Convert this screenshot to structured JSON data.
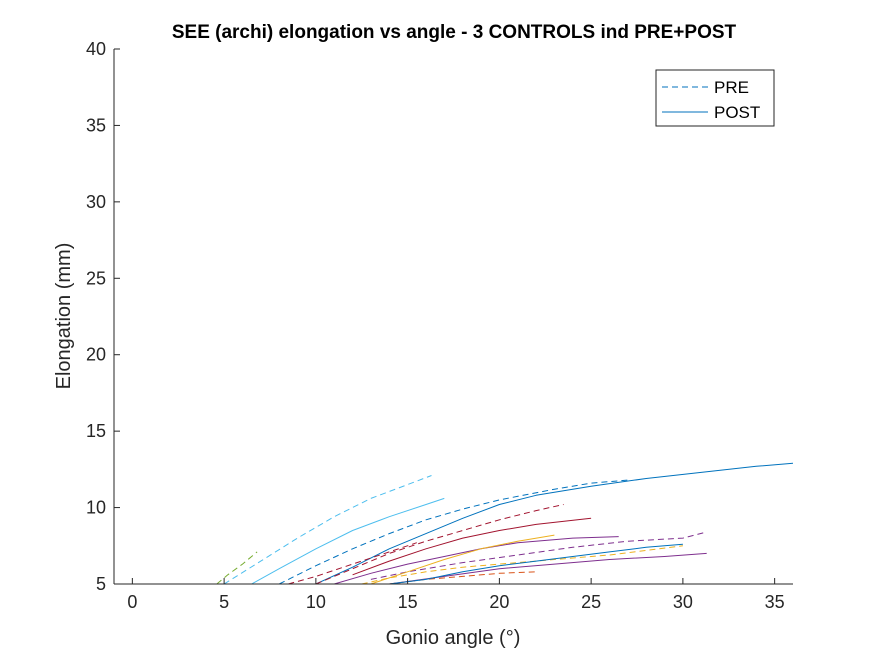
{
  "chart_data": {
    "type": "line",
    "title": "SEE (archi) elongation vs angle - 3 CONTROLS ind PRE+POST",
    "xlabel": "Gonio angle (°)",
    "ylabel": "Elongation (mm)",
    "xlim": [
      -1,
      36
    ],
    "ylim": [
      5,
      40
    ],
    "xticks": [
      0,
      5,
      10,
      15,
      20,
      25,
      30,
      35
    ],
    "yticks": [
      5,
      10,
      15,
      20,
      25,
      30,
      35,
      40
    ],
    "grid": false,
    "legend": {
      "placement": "top-right",
      "entries": [
        {
          "label": "PRE",
          "style": "dashed",
          "color": "#0072BD"
        },
        {
          "label": "POST",
          "style": "solid",
          "color": "#0072BD"
        }
      ]
    },
    "series": [
      {
        "style": "dashed",
        "color": "#4DBEEE",
        "points": [
          [
            5,
            5
          ],
          [
            7,
            6.5
          ],
          [
            9,
            8
          ],
          [
            11,
            9.4
          ],
          [
            13,
            10.6
          ],
          [
            15,
            11.5
          ],
          [
            16.3,
            12.1
          ]
        ]
      },
      {
        "style": "solid",
        "color": "#4DBEEE",
        "points": [
          [
            6.5,
            5
          ],
          [
            8,
            6
          ],
          [
            10,
            7.3
          ],
          [
            12,
            8.5
          ],
          [
            14,
            9.4
          ],
          [
            16,
            10.2
          ],
          [
            17,
            10.6
          ]
        ]
      },
      {
        "style": "dashed",
        "color": "#77AC30",
        "points": [
          [
            4.6,
            5
          ],
          [
            5.2,
            5.6
          ],
          [
            6,
            6.3
          ],
          [
            6.8,
            7.1
          ]
        ]
      },
      {
        "style": "dashed",
        "color": "#0072BD",
        "points": [
          [
            8,
            5
          ],
          [
            10,
            6.2
          ],
          [
            12,
            7.3
          ],
          [
            14,
            8.3
          ],
          [
            16,
            9.2
          ],
          [
            18,
            9.9
          ],
          [
            20,
            10.5
          ],
          [
            23,
            11.2
          ],
          [
            25,
            11.6
          ],
          [
            27,
            11.8
          ]
        ]
      },
      {
        "style": "solid",
        "color": "#0072BD",
        "points": [
          [
            10,
            5
          ],
          [
            12,
            6.1
          ],
          [
            14,
            7.3
          ],
          [
            16,
            8.3
          ],
          [
            18,
            9.3
          ],
          [
            20,
            10.2
          ],
          [
            22,
            10.8
          ],
          [
            25,
            11.4
          ],
          [
            28,
            11.9
          ],
          [
            31,
            12.3
          ],
          [
            34,
            12.7
          ],
          [
            36,
            12.9
          ]
        ]
      },
      {
        "style": "dashed",
        "color": "#A2142F",
        "points": [
          [
            10,
            5
          ],
          [
            12,
            6
          ],
          [
            14,
            7
          ],
          [
            16,
            7.8
          ],
          [
            18,
            8.5
          ],
          [
            20,
            9.2
          ],
          [
            22,
            9.8
          ],
          [
            23.5,
            10.2
          ]
        ]
      },
      {
        "style": "solid",
        "color": "#A2142F",
        "points": [
          [
            12,
            5.6
          ],
          [
            14,
            6.5
          ],
          [
            16,
            7.3
          ],
          [
            18,
            8
          ],
          [
            20,
            8.5
          ],
          [
            22,
            8.9
          ],
          [
            25,
            9.3
          ]
        ]
      },
      {
        "style": "dashed",
        "color": "#7E2F8E",
        "points": [
          [
            13,
            5.3
          ],
          [
            15,
            5.8
          ],
          [
            18,
            6.4
          ],
          [
            21,
            6.9
          ],
          [
            24,
            7.4
          ],
          [
            27,
            7.8
          ],
          [
            30,
            8
          ],
          [
            31.3,
            8.4
          ]
        ]
      },
      {
        "style": "solid",
        "color": "#7E2F8E",
        "points": [
          [
            11,
            5
          ],
          [
            13,
            5.7
          ],
          [
            15,
            6.3
          ],
          [
            17,
            6.8
          ],
          [
            19,
            7.3
          ],
          [
            21,
            7.7
          ],
          [
            24,
            8
          ],
          [
            26.5,
            8.1
          ]
        ]
      },
      {
        "style": "solid",
        "color": "#7E2F8E",
        "points": [
          [
            14,
            5
          ],
          [
            17,
            5.5
          ],
          [
            20,
            6
          ],
          [
            23,
            6.3
          ],
          [
            26,
            6.6
          ],
          [
            29,
            6.8
          ],
          [
            31.3,
            7
          ]
        ]
      },
      {
        "style": "dashed",
        "color": "#EDB120",
        "points": [
          [
            12.5,
            5
          ],
          [
            14,
            5.4
          ],
          [
            16,
            5.8
          ],
          [
            18,
            6.1
          ],
          [
            20,
            6.3
          ],
          [
            22,
            6.5
          ],
          [
            24,
            6.7
          ],
          [
            26,
            6.9
          ],
          [
            28,
            7.2
          ],
          [
            30,
            7.5
          ]
        ]
      },
      {
        "style": "solid",
        "color": "#EDB120",
        "points": [
          [
            13,
            5
          ],
          [
            15,
            5.8
          ],
          [
            17,
            6.6
          ],
          [
            19,
            7.3
          ],
          [
            21,
            7.8
          ],
          [
            23,
            8.2
          ]
        ]
      },
      {
        "style": "dashed",
        "color": "#D95319",
        "points": [
          [
            14,
            5
          ],
          [
            16,
            5.3
          ],
          [
            18,
            5.5
          ],
          [
            20,
            5.7
          ],
          [
            22,
            5.8
          ]
        ]
      },
      {
        "style": "solid",
        "color": "#0072BD",
        "points": [
          [
            14,
            5
          ],
          [
            16,
            5.3
          ],
          [
            18,
            5.8
          ],
          [
            20,
            6.2
          ],
          [
            22,
            6.5
          ],
          [
            24,
            6.8
          ],
          [
            26,
            7.1
          ],
          [
            28,
            7.4
          ],
          [
            30,
            7.6
          ]
        ]
      },
      {
        "style": "dashed",
        "color": "#A2142F",
        "points": [
          [
            8.5,
            5
          ],
          [
            10,
            5.5
          ],
          [
            12,
            6.3
          ],
          [
            14,
            7.1
          ],
          [
            15.5,
            7.7
          ]
        ]
      }
    ]
  }
}
